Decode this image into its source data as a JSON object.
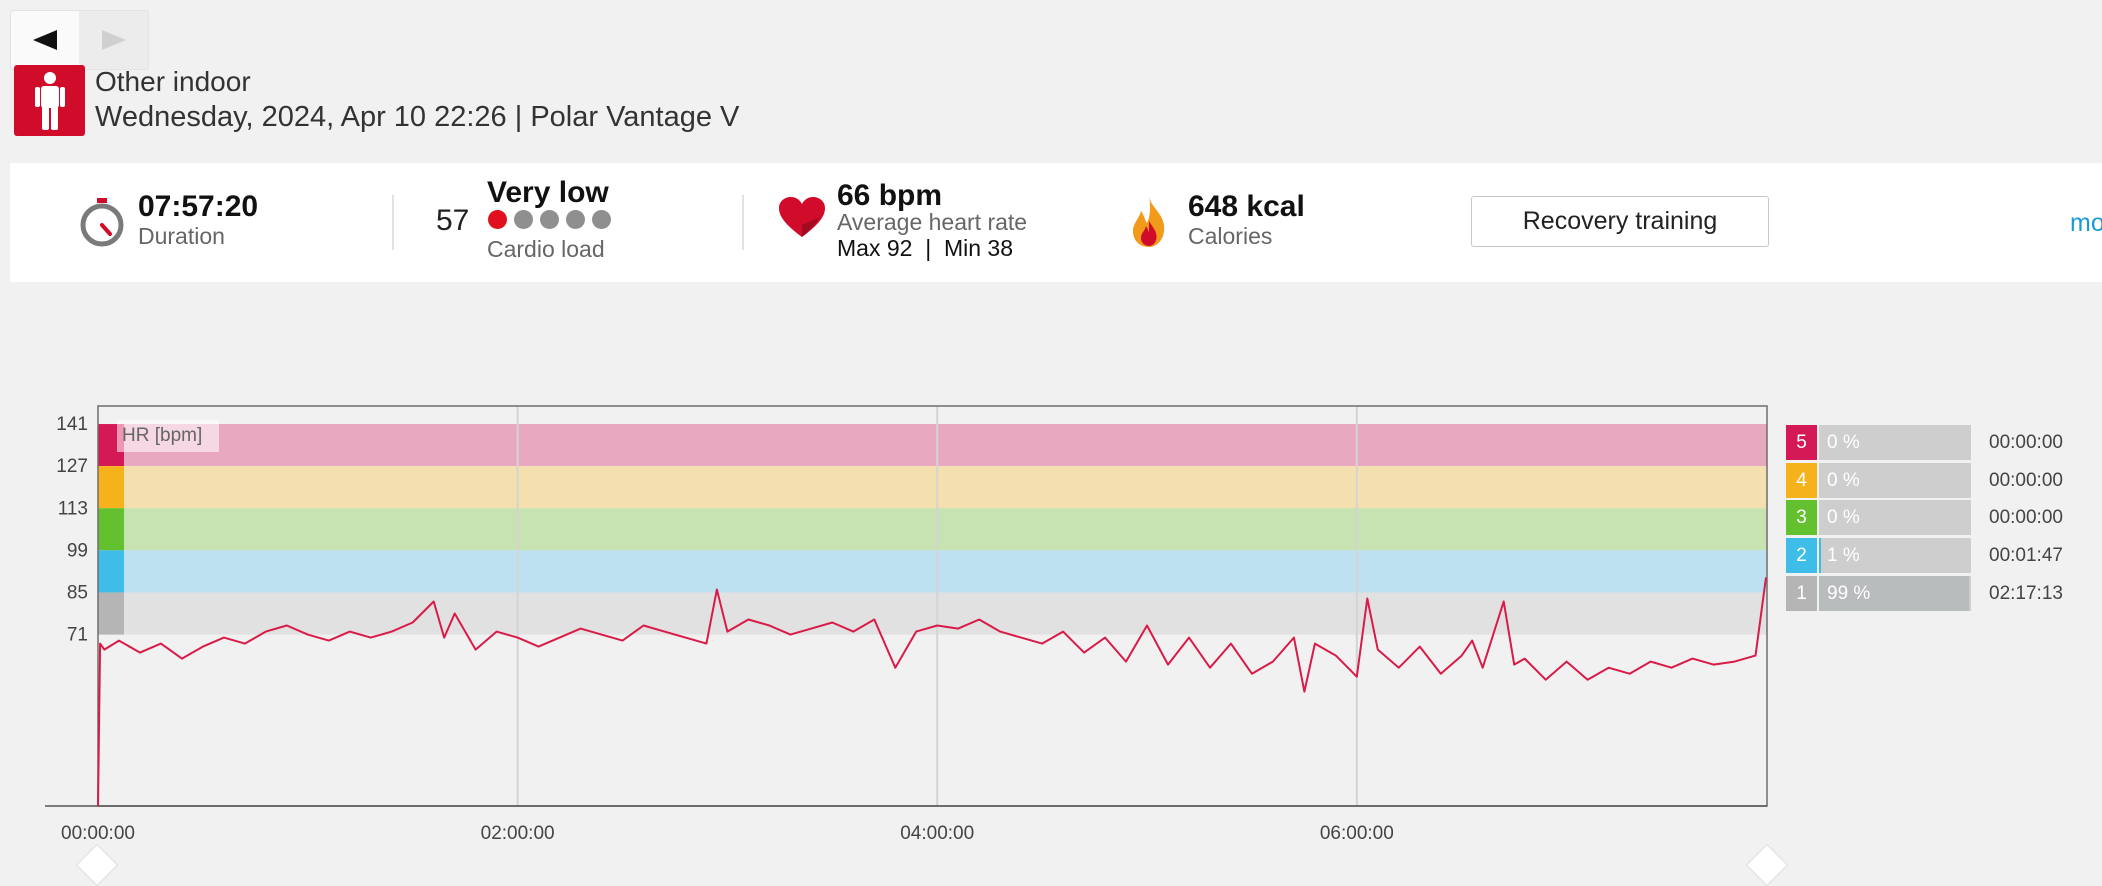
{
  "nav": {
    "prev_icon": "prev-arrow-icon",
    "next_icon": "next-arrow-icon"
  },
  "session": {
    "sport_icon": "person-standing-icon",
    "sport": "Other indoor",
    "date_device": "Wednesday, 2024, Apr 10 22:26 | Polar Vantage V"
  },
  "summary": {
    "duration": {
      "icon": "stopwatch-icon",
      "value": "07:57:20",
      "label": "Duration"
    },
    "cardio": {
      "number": "57",
      "level": "Very low",
      "label": "Cardio load",
      "dots_filled": 1,
      "dots_total": 5
    },
    "heart": {
      "icon": "heart-icon",
      "value": "66 bpm",
      "label": "Average heart rate",
      "detail": "Max 92  |  Min 38"
    },
    "calories": {
      "icon": "flame-icon",
      "value": "648 kcal",
      "label": "Calories"
    },
    "benefit_button": "Recovery training",
    "more_link": "mo",
    "colors": {
      "accent": "#d10b2a",
      "link": "#1a9bd8"
    }
  },
  "chart_data": {
    "type": "line",
    "legend": "HR [bpm]",
    "y_ticks": [
      141,
      127,
      113,
      99,
      85,
      71
    ],
    "ylim": [
      14,
      147
    ],
    "x_ticks": [
      "00:00:00",
      "02:00:00",
      "04:00:00",
      "06:00:00"
    ],
    "x_tick_hours": [
      0,
      2,
      4,
      6
    ],
    "x_range_hours": [
      0,
      7.955
    ],
    "zones": [
      {
        "zone": "5",
        "from": 127,
        "to": 141,
        "color": "#e8a8c0",
        "strip": "#d51957"
      },
      {
        "zone": "4",
        "from": 113,
        "to": 127,
        "color": "#f4dfae",
        "strip": "#f6b21b"
      },
      {
        "zone": "3",
        "from": 99,
        "to": 113,
        "color": "#c6e3b1",
        "strip": "#63c02e"
      },
      {
        "zone": "2",
        "from": 85,
        "to": 99,
        "color": "#bde1f1",
        "strip": "#3dbde8"
      },
      {
        "zone": "1",
        "from": 71,
        "to": 85,
        "color": "#e1e1e1",
        "strip": "#b5b5b5"
      }
    ],
    "series": [
      {
        "color": "#d81b48",
        "points": [
          [
            0.0,
            14
          ],
          [
            0.01,
            68
          ],
          [
            0.03,
            66
          ],
          [
            0.1,
            69
          ],
          [
            0.2,
            65
          ],
          [
            0.3,
            68
          ],
          [
            0.4,
            63
          ],
          [
            0.5,
            67
          ],
          [
            0.6,
            70
          ],
          [
            0.7,
            68
          ],
          [
            0.8,
            72
          ],
          [
            0.9,
            74
          ],
          [
            1.0,
            71
          ],
          [
            1.1,
            69
          ],
          [
            1.2,
            72
          ],
          [
            1.3,
            70
          ],
          [
            1.4,
            72
          ],
          [
            1.5,
            75
          ],
          [
            1.6,
            82
          ],
          [
            1.65,
            70
          ],
          [
            1.7,
            78
          ],
          [
            1.8,
            66
          ],
          [
            1.9,
            72
          ],
          [
            2.0,
            70
          ],
          [
            2.1,
            67
          ],
          [
            2.2,
            70
          ],
          [
            2.3,
            73
          ],
          [
            2.4,
            71
          ],
          [
            2.5,
            69
          ],
          [
            2.6,
            74
          ],
          [
            2.7,
            72
          ],
          [
            2.8,
            70
          ],
          [
            2.9,
            68
          ],
          [
            2.95,
            86
          ],
          [
            3.0,
            72
          ],
          [
            3.1,
            76
          ],
          [
            3.2,
            74
          ],
          [
            3.3,
            71
          ],
          [
            3.4,
            73
          ],
          [
            3.5,
            75
          ],
          [
            3.6,
            72
          ],
          [
            3.7,
            76
          ],
          [
            3.8,
            60
          ],
          [
            3.9,
            72
          ],
          [
            4.0,
            74
          ],
          [
            4.1,
            73
          ],
          [
            4.2,
            76
          ],
          [
            4.3,
            72
          ],
          [
            4.4,
            70
          ],
          [
            4.5,
            68
          ],
          [
            4.6,
            72
          ],
          [
            4.7,
            65
          ],
          [
            4.8,
            70
          ],
          [
            4.9,
            62
          ],
          [
            5.0,
            74
          ],
          [
            5.1,
            61
          ],
          [
            5.2,
            70
          ],
          [
            5.3,
            60
          ],
          [
            5.4,
            68
          ],
          [
            5.5,
            58
          ],
          [
            5.6,
            62
          ],
          [
            5.7,
            70
          ],
          [
            5.75,
            52
          ],
          [
            5.8,
            68
          ],
          [
            5.9,
            64
          ],
          [
            6.0,
            57
          ],
          [
            6.05,
            83
          ],
          [
            6.1,
            66
          ],
          [
            6.2,
            60
          ],
          [
            6.3,
            67
          ],
          [
            6.4,
            58
          ],
          [
            6.5,
            64
          ],
          [
            6.55,
            69
          ],
          [
            6.6,
            60
          ],
          [
            6.7,
            82
          ],
          [
            6.75,
            61
          ],
          [
            6.8,
            63
          ],
          [
            6.9,
            56
          ],
          [
            7.0,
            62
          ],
          [
            7.1,
            56
          ],
          [
            7.2,
            60
          ],
          [
            7.3,
            58
          ],
          [
            7.4,
            62
          ],
          [
            7.5,
            60
          ],
          [
            7.6,
            63
          ],
          [
            7.7,
            61
          ],
          [
            7.8,
            62
          ],
          [
            7.9,
            64
          ],
          [
            7.95,
            90
          ]
        ]
      }
    ]
  },
  "zones_summary": [
    {
      "num": "5",
      "pct": "0 %",
      "frac": 0.0,
      "time": "00:00:00",
      "color": "#d51957"
    },
    {
      "num": "4",
      "pct": "0 %",
      "frac": 0.0,
      "time": "00:00:00",
      "color": "#f6b21b"
    },
    {
      "num": "3",
      "pct": "0 %",
      "frac": 0.0,
      "time": "00:00:00",
      "color": "#63c02e"
    },
    {
      "num": "2",
      "pct": "1 %",
      "frac": 0.01,
      "time": "00:01:47",
      "color": "#3dbde8"
    },
    {
      "num": "1",
      "pct": "99 %",
      "frac": 0.99,
      "time": "02:17:13",
      "color": "#b5b5b5"
    }
  ]
}
